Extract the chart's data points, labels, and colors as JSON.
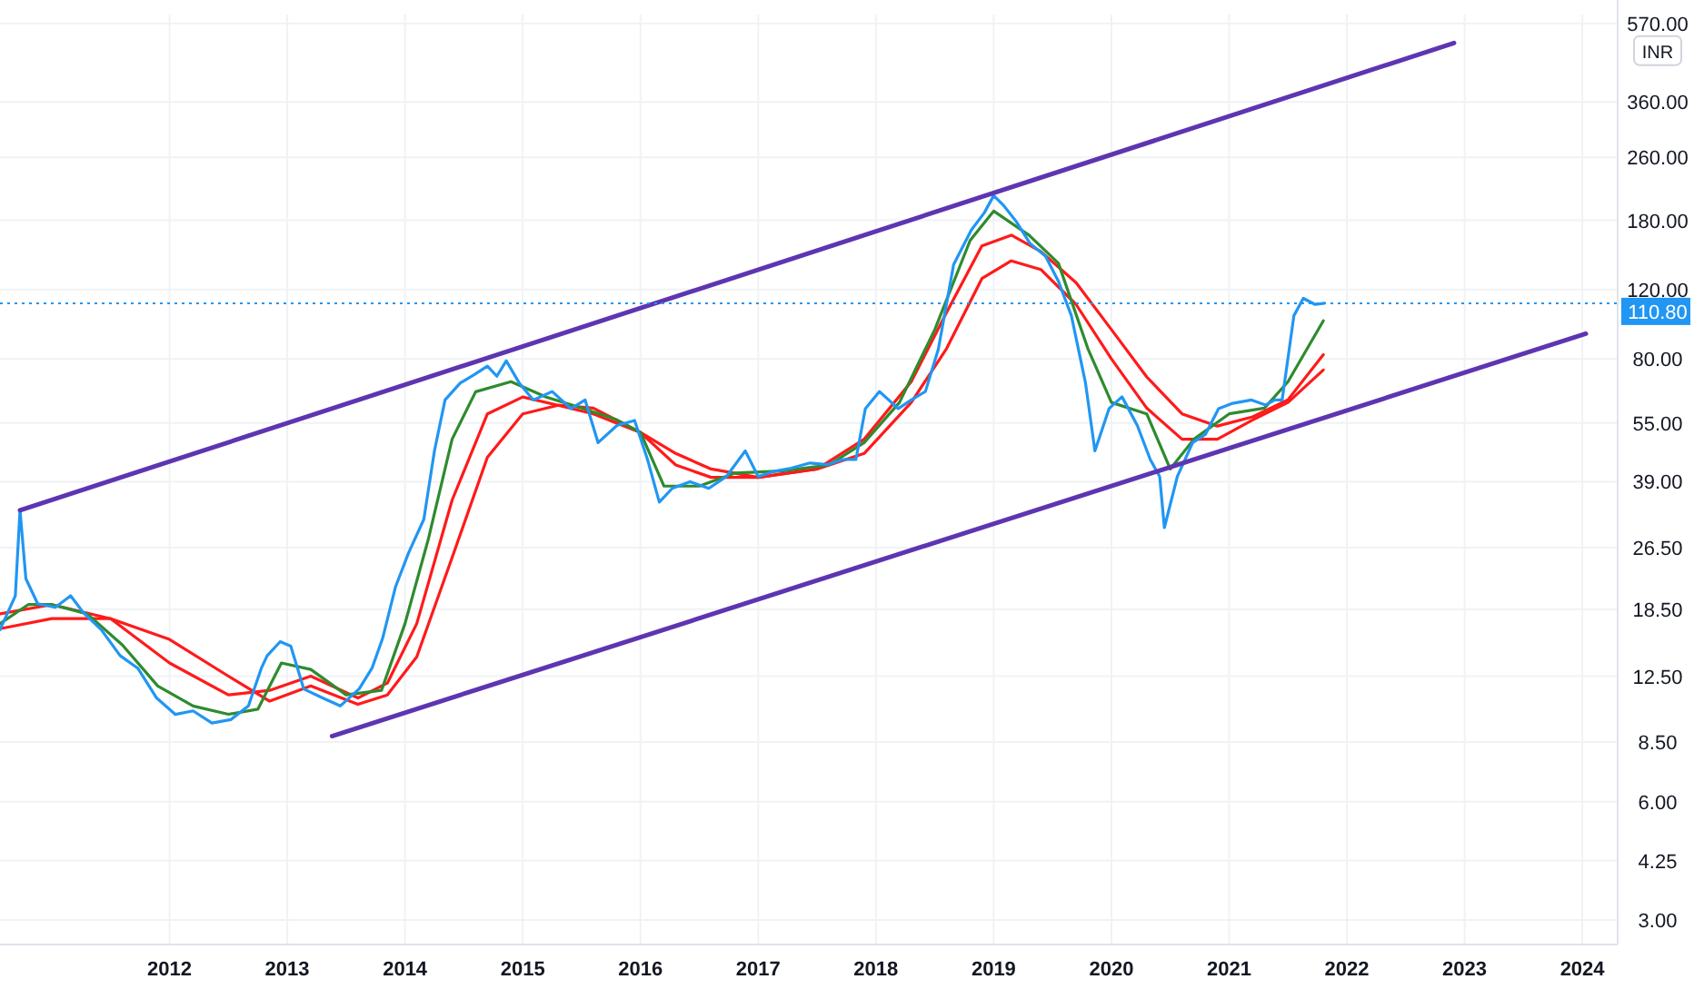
{
  "chart_data": {
    "type": "line",
    "ylabel": "INR",
    "log": "y",
    "grid": true,
    "marker": "none",
    "xlim": [
      2010.56,
      2024.3
    ],
    "xticks": [
      2012,
      2013,
      2014,
      2015,
      2016,
      2017,
      2018,
      2019,
      2020,
      2021,
      2022,
      2023,
      2024
    ],
    "ylim": [
      2.6,
      600
    ],
    "yticks": [
      {
        "value": 3,
        "label": "3.00"
      },
      {
        "value": 4.25,
        "label": "4.25"
      },
      {
        "value": 6,
        "label": "6.00"
      },
      {
        "value": 8.5,
        "label": "8.50"
      },
      {
        "value": 12.5,
        "label": "12.50"
      },
      {
        "value": 18.5,
        "label": "18.50"
      },
      {
        "value": 26.5,
        "label": "26.50"
      },
      {
        "value": 39,
        "label": "39.00"
      },
      {
        "value": 55,
        "label": "55.00"
      },
      {
        "value": 80,
        "label": "80.00"
      },
      {
        "value": 120,
        "label": "120.00"
      },
      {
        "value": 180,
        "label": "180.00"
      },
      {
        "value": 260,
        "label": "260.00"
      },
      {
        "value": 360,
        "label": "360.00"
      },
      {
        "value": 570,
        "label": "570.00"
      }
    ],
    "ref_lines": [
      {
        "axis": "y",
        "value": 110.8,
        "label": "110.80",
        "color": "#2196f3",
        "line_style": "dotted"
      }
    ],
    "series": [
      {
        "color": "#ff1a1a",
        "x": [
          2010.56,
          2011.0,
          2011.5,
          2012.0,
          2012.5,
          2012.85,
          2013.2,
          2013.6,
          2013.85,
          2014.1,
          2014.4,
          2014.7,
          2015.0,
          2015.3,
          2015.6,
          2016.0,
          2016.3,
          2016.6,
          2017.0,
          2017.5,
          2017.9,
          2018.3,
          2018.6,
          2018.9,
          2019.15,
          2019.4,
          2019.7,
          2020.0,
          2020.3,
          2020.6,
          2020.9,
          2021.2,
          2021.5,
          2021.8
        ],
        "values": [
          16.5,
          17.5,
          17.5,
          15.5,
          12.5,
          10.8,
          11.8,
          10.6,
          11.2,
          14,
          25,
          45,
          58,
          61,
          60,
          52,
          46,
          42,
          40,
          42,
          46,
          62,
          85,
          128,
          142,
          135,
          110,
          80,
          60,
          50,
          50,
          56,
          62,
          75
        ]
      },
      {
        "color": "#ff1a1a",
        "x": [
          2010.56,
          2011.0,
          2011.5,
          2012.0,
          2012.5,
          2012.85,
          2013.2,
          2013.6,
          2013.85,
          2014.1,
          2014.4,
          2014.7,
          2015.0,
          2015.3,
          2015.6,
          2016.0,
          2016.3,
          2016.6,
          2017.0,
          2017.5,
          2017.9,
          2018.3,
          2018.6,
          2018.9,
          2019.15,
          2019.4,
          2019.7,
          2020.0,
          2020.3,
          2020.6,
          2020.9,
          2021.2,
          2021.5,
          2021.8
        ],
        "values": [
          18,
          19,
          17.5,
          13.5,
          11.2,
          11.5,
          12.5,
          11,
          12,
          17,
          35,
          58,
          64,
          61,
          58,
          52,
          43,
          40,
          40,
          42,
          50,
          70,
          105,
          155,
          165,
          150,
          125,
          95,
          72,
          58,
          54,
          57,
          63,
          82
        ]
      },
      {
        "color": "#2e8b2e",
        "x": [
          2010.56,
          2010.8,
          2011.0,
          2011.3,
          2011.6,
          2011.9,
          2012.2,
          2012.5,
          2012.75,
          2012.95,
          2013.2,
          2013.5,
          2013.8,
          2014.0,
          2014.2,
          2014.4,
          2014.6,
          2014.9,
          2015.2,
          2015.5,
          2015.8,
          2016.0,
          2016.2,
          2016.5,
          2016.8,
          2017.2,
          2017.6,
          2017.9,
          2018.2,
          2018.5,
          2018.8,
          2019.0,
          2019.3,
          2019.55,
          2019.8,
          2020.0,
          2020.3,
          2020.5,
          2020.7,
          2021.0,
          2021.3,
          2021.5,
          2021.8
        ],
        "values": [
          17,
          19,
          19,
          18,
          15,
          11.8,
          10.5,
          10,
          10.3,
          13.5,
          13,
          11.2,
          11.5,
          17,
          28,
          50,
          66,
          70,
          64,
          60,
          56,
          52,
          38,
          38,
          41,
          41.5,
          43,
          49,
          62,
          95,
          160,
          190,
          165,
          140,
          85,
          62,
          58,
          42,
          50,
          58,
          60,
          70,
          100
        ]
      },
      {
        "color": "#2196f3",
        "x": [
          2010.56,
          2010.69,
          2010.73,
          2010.78,
          2010.88,
          2011.03,
          2011.16,
          2011.27,
          2011.42,
          2011.58,
          2011.73,
          2011.89,
          2012.05,
          2012.2,
          2012.36,
          2012.52,
          2012.67,
          2012.78,
          2012.83,
          2012.94,
          2013.03,
          2013.14,
          2013.3,
          2013.45,
          2013.61,
          2013.72,
          2013.81,
          2013.92,
          2014.03,
          2014.16,
          2014.25,
          2014.34,
          2014.47,
          2014.59,
          2014.7,
          2014.78,
          2014.86,
          2014.97,
          2015.09,
          2015.25,
          2015.41,
          2015.53,
          2015.64,
          2015.8,
          2015.95,
          2016.06,
          2016.16,
          2016.27,
          2016.42,
          2016.58,
          2016.73,
          2016.89,
          2017.0,
          2017.13,
          2017.28,
          2017.44,
          2017.59,
          2017.72,
          2017.83,
          2017.91,
          2018.03,
          2018.19,
          2018.3,
          2018.42,
          2018.53,
          2018.66,
          2018.81,
          2018.92,
          2019.0,
          2019.08,
          2019.19,
          2019.31,
          2019.44,
          2019.55,
          2019.66,
          2019.78,
          2019.86,
          2019.98,
          2020.09,
          2020.22,
          2020.33,
          2020.41,
          2020.45,
          2020.56,
          2020.69,
          2020.8,
          2020.91,
          2021.03,
          2021.19,
          2021.31,
          2021.39,
          2021.45,
          2021.55,
          2021.63,
          2021.73,
          2021.81
        ],
        "values": [
          16.4,
          20.0,
          33.0,
          22.1,
          19.1,
          18.7,
          20.0,
          18.1,
          16.4,
          14.1,
          13.1,
          11.0,
          9.99,
          10.2,
          9.5,
          9.69,
          10.5,
          13.1,
          14.1,
          15.3,
          14.9,
          11.6,
          11.0,
          10.5,
          11.6,
          13.1,
          15.6,
          21.1,
          25.7,
          31.3,
          46.7,
          62.9,
          69.5,
          73.0,
          76.7,
          72.3,
          79.1,
          69.5,
          62.9,
          66.1,
          59.8,
          62.9,
          49.0,
          54.2,
          55.8,
          44.4,
          34.6,
          37.5,
          39.0,
          37.5,
          40.2,
          46.7,
          40.2,
          41.4,
          42.2,
          43.5,
          43.1,
          44.4,
          44.4,
          59.8,
          66.1,
          59.8,
          62.9,
          66.1,
          84.7,
          139,
          170,
          188,
          208,
          197,
          179,
          157,
          146,
          126,
          103,
          69.5,
          46.7,
          59.8,
          64.1,
          54.2,
          44.4,
          40.2,
          29.8,
          40.2,
          49.0,
          51.5,
          59.8,
          61.7,
          62.9,
          61.1,
          62.9,
          62.9,
          103,
          114,
          110,
          110.8
        ]
      },
      {
        "color": "#5e35b1",
        "x": [
          2010.73,
          2022.91
        ],
        "values": [
          33,
          508
        ]
      },
      {
        "color": "#5e35b1",
        "x": [
          2013.38,
          2024.03
        ],
        "values": [
          8.8,
          92.7
        ]
      }
    ]
  }
}
